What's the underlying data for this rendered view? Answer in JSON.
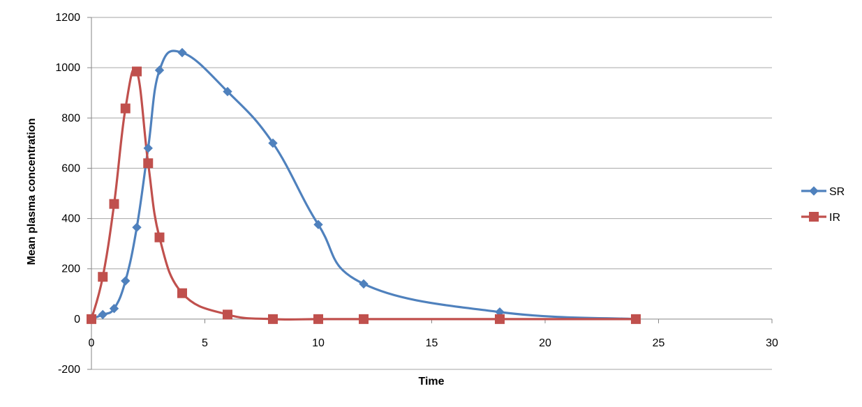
{
  "chart_data": {
    "type": "line",
    "title": "",
    "xlabel": "Time",
    "ylabel": "Mean plasma concentration",
    "xlim": [
      0,
      30
    ],
    "ylim": [
      -200,
      1200
    ],
    "xticks": [
      0,
      5,
      10,
      15,
      20,
      25,
      30
    ],
    "yticks": [
      -200,
      0,
      200,
      400,
      600,
      800,
      1000,
      1200
    ],
    "grid": "horizontal",
    "legend_position": "right",
    "smooth": true,
    "series": [
      {
        "name": "SR",
        "color": "#4f81bd",
        "marker": "diamond",
        "x": [
          0,
          0.5,
          1,
          1.5,
          2,
          2.5,
          3,
          4,
          6,
          8,
          10,
          12,
          18,
          24
        ],
        "y": [
          0,
          18,
          42,
          152,
          365,
          680,
          990,
          1060,
          905,
          700,
          376,
          140,
          28,
          0
        ]
      },
      {
        "name": "IR",
        "color": "#c0504d",
        "marker": "square",
        "x": [
          0,
          0.5,
          1,
          1.5,
          2,
          2.5,
          3,
          4,
          6,
          8,
          10,
          12,
          18,
          24
        ],
        "y": [
          0,
          168,
          458,
          838,
          985,
          620,
          325,
          103,
          18,
          0,
          0,
          0,
          0,
          0
        ]
      }
    ]
  }
}
